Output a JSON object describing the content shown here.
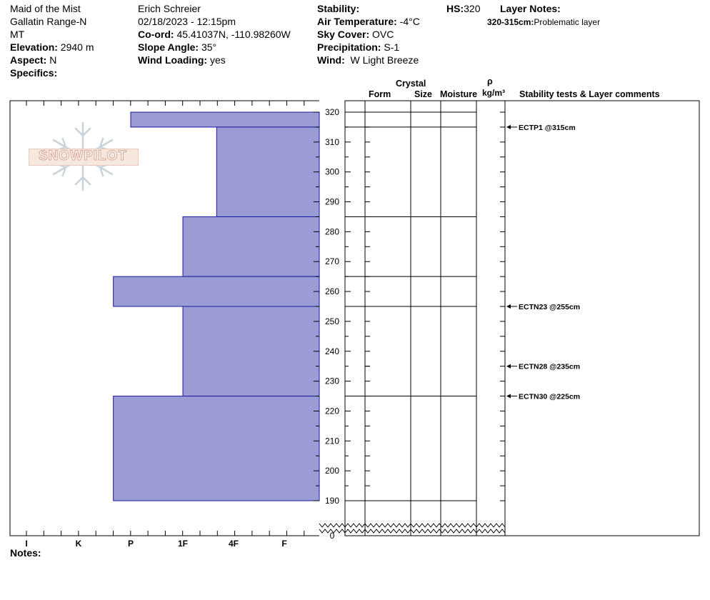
{
  "header": {
    "location_name": "Maid of the Mist",
    "range": "Gallatin Range-N",
    "state": "MT",
    "elevation_label": "Elevation:",
    "elevation": "2940 m",
    "aspect_label": "Aspect:",
    "aspect": "N",
    "specifics_label": "Specifics:",
    "observer": "Erich  Schreier",
    "datetime": "02/18/2023 - 12:15pm",
    "coord_label": "Co-ord:",
    "coord": "45.41037N, -110.98260W",
    "slope_label": "Slope Angle:",
    "slope": "35°",
    "wind_loading_label": "Wind Loading:",
    "wind_loading": "yes",
    "stability_label": "Stability:",
    "air_temp_label": "Air Temperature:",
    "air_temp": "-4°C",
    "sky_label": "Sky Cover:",
    "sky": "OVC",
    "precip_label": "Precipitation:",
    "precip": "S-1",
    "wind_label": "Wind:",
    "wind": "W Light Breeze",
    "hs_label": "HS:",
    "hs": "320",
    "layer_notes_label": "Layer Notes:",
    "layer_note_range": "320-315cm:",
    "layer_note_text": "Problematic layer"
  },
  "logo_text": "SNOWPILOT",
  "notes_label": "Notes:",
  "columns": {
    "crystal": "Crystal",
    "form": "Form",
    "size": "Size",
    "moisture": "Moisture",
    "rho": "ρ",
    "density_unit": "kg/m³",
    "comments": "Stability tests & Layer comments"
  },
  "colors": {
    "layer_fill": "#9b9bd6",
    "layer_stroke": "#1a1a9c"
  },
  "chart_data": {
    "type": "bar",
    "orientation": "horizontal",
    "hardness_scale": [
      "I",
      "K",
      "P",
      "1F",
      "4F",
      "F"
    ],
    "y_ticks": [
      320,
      310,
      300,
      290,
      280,
      270,
      260,
      250,
      240,
      230,
      220,
      210,
      200,
      190,
      0
    ],
    "ylim": [
      190,
      320
    ],
    "y_break": true,
    "layers": [
      {
        "top": 320,
        "bottom": 315,
        "hardness": "P"
      },
      {
        "top": 315,
        "bottom": 285,
        "hardness": "4F+"
      },
      {
        "top": 285,
        "bottom": 265,
        "hardness": "1F"
      },
      {
        "top": 265,
        "bottom": 255,
        "hardness": "P+"
      },
      {
        "top": 255,
        "bottom": 225,
        "hardness": "1F"
      },
      {
        "top": 225,
        "bottom": 190,
        "hardness": "P+"
      }
    ],
    "stability_tests": [
      {
        "depth": 315,
        "label": "ECTP1 @315cm"
      },
      {
        "depth": 255,
        "label": "ECTN23 @255cm"
      },
      {
        "depth": 235,
        "label": "ECTN28 @235cm"
      },
      {
        "depth": 225,
        "label": "ECTN30 @225cm"
      }
    ]
  }
}
